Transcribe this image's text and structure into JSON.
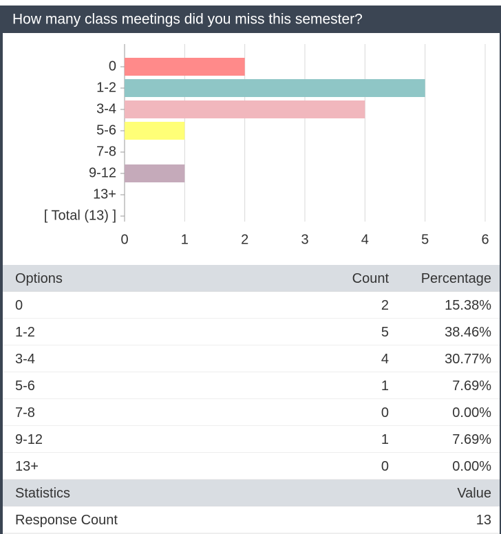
{
  "header": {
    "title": "How many class meetings did you miss this semester?"
  },
  "chart_data": {
    "type": "bar",
    "orientation": "horizontal",
    "categories": [
      "0",
      "1-2",
      "3-4",
      "5-6",
      "7-8",
      "9-12",
      "13+",
      "[ Total (13) ]"
    ],
    "values": [
      2,
      5,
      4,
      1,
      0,
      1,
      0,
      null
    ],
    "colors": [
      "#ff8a8a",
      "#8fc6c6",
      "#f1b7bd",
      "#ffff77",
      null,
      "#c5aaba",
      null,
      null
    ],
    "xlim": [
      0,
      6
    ],
    "xticks": [
      0,
      1,
      2,
      3,
      4,
      5,
      6
    ],
    "grid": true
  },
  "table": {
    "header": [
      "Options",
      "Count",
      "Percentage"
    ],
    "rows": [
      [
        "0",
        "2",
        "15.38%"
      ],
      [
        "1-2",
        "5",
        "38.46%"
      ],
      [
        "3-4",
        "4",
        "30.77%"
      ],
      [
        "5-6",
        "1",
        "7.69%"
      ],
      [
        "7-8",
        "0",
        "0.00%"
      ],
      [
        "9-12",
        "1",
        "7.69%"
      ],
      [
        "13+",
        "0",
        "0.00%"
      ]
    ]
  },
  "statistics": {
    "header": [
      "Statistics",
      "Value"
    ],
    "rows": [
      [
        "Response Count",
        "13"
      ]
    ]
  }
}
